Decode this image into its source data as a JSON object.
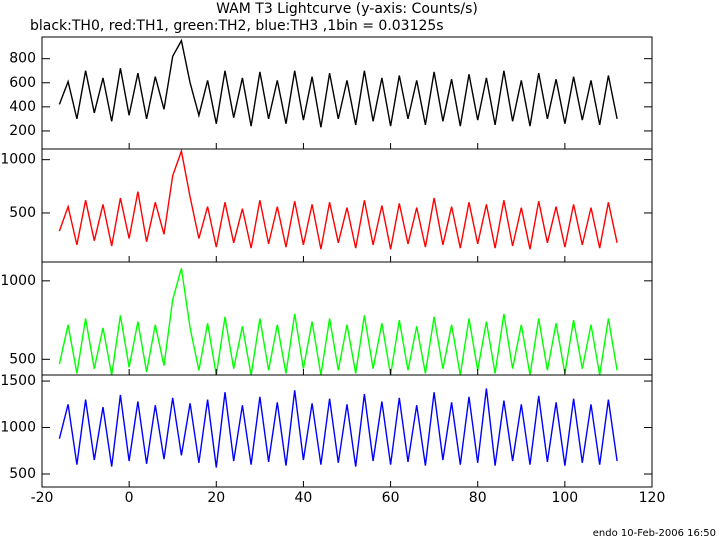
{
  "title": "WAM T3 Lightcurve (y-axis: Counts/s)",
  "subtitle": "black:TH0, red:TH1, green:TH2, blue:TH3 ,1bin = 0.03125s",
  "footer": "endo 10-Feb-2006 16:50",
  "chart_data": [
    {
      "type": "line",
      "x": [
        -16,
        -14,
        -12,
        -10,
        -8,
        -6,
        -4,
        -2,
        0,
        2,
        4,
        6,
        8,
        10,
        12,
        14,
        16,
        18,
        20,
        22,
        24,
        26,
        28,
        30,
        32,
        34,
        36,
        38,
        40,
        42,
        44,
        46,
        48,
        50,
        52,
        54,
        56,
        58,
        60,
        62,
        64,
        66,
        68,
        70,
        72,
        74,
        76,
        78,
        80,
        82,
        84,
        86,
        88,
        90,
        92,
        94,
        96,
        98,
        100,
        102,
        104,
        106,
        108,
        110,
        112
      ],
      "series": [
        {
          "name": "TH0",
          "color": "#000000",
          "values": [
            420,
            610,
            300,
            700,
            350,
            640,
            280,
            720,
            330,
            680,
            300,
            650,
            380,
            820,
            950,
            600,
            330,
            620,
            260,
            700,
            310,
            640,
            240,
            690,
            300,
            620,
            260,
            700,
            290,
            650,
            230,
            680,
            300,
            620,
            250,
            700,
            280,
            640,
            240,
            660,
            300,
            620,
            250,
            690,
            280,
            630,
            240,
            670,
            290,
            640,
            250,
            700,
            280,
            620,
            240,
            680,
            300,
            630,
            260,
            650,
            290,
            620,
            250,
            660,
            300
          ]
        }
      ],
      "xlim": [
        -20,
        120
      ],
      "xticks": [
        -20,
        0,
        20,
        40,
        60,
        80,
        100,
        120
      ],
      "ylim": [
        50,
        980
      ],
      "yticks": [
        200,
        400,
        600,
        800
      ]
    },
    {
      "type": "line",
      "x": [
        -16,
        -14,
        -12,
        -10,
        -8,
        -6,
        -4,
        -2,
        0,
        2,
        4,
        6,
        8,
        10,
        12,
        14,
        16,
        18,
        20,
        22,
        24,
        26,
        28,
        30,
        32,
        34,
        36,
        38,
        40,
        42,
        44,
        46,
        48,
        50,
        52,
        54,
        56,
        58,
        60,
        62,
        64,
        66,
        68,
        70,
        72,
        74,
        76,
        78,
        80,
        82,
        84,
        86,
        88,
        90,
        92,
        94,
        96,
        98,
        100,
        102,
        104,
        106,
        108,
        110,
        112
      ],
      "series": [
        {
          "name": "TH1",
          "color": "#ff0000",
          "values": [
            330,
            560,
            200,
            620,
            240,
            580,
            190,
            640,
            260,
            700,
            230,
            600,
            300,
            850,
            1080,
            650,
            260,
            560,
            180,
            600,
            220,
            540,
            170,
            620,
            210,
            560,
            180,
            610,
            200,
            580,
            160,
            600,
            220,
            550,
            170,
            620,
            200,
            570,
            160,
            590,
            210,
            550,
            180,
            640,
            200,
            560,
            170,
            600,
            210,
            580,
            170,
            620,
            190,
            550,
            160,
            610,
            220,
            560,
            180,
            580,
            200,
            550,
            170,
            600,
            220
          ]
        }
      ],
      "xlim": [
        -20,
        120
      ],
      "xticks": [
        -20,
        0,
        20,
        40,
        60,
        80,
        100,
        120
      ],
      "ylim": [
        40,
        1100
      ],
      "yticks": [
        500,
        1000
      ]
    },
    {
      "type": "line",
      "x": [
        -16,
        -14,
        -12,
        -10,
        -8,
        -6,
        -4,
        -2,
        0,
        2,
        4,
        6,
        8,
        10,
        12,
        14,
        16,
        18,
        20,
        22,
        24,
        26,
        28,
        30,
        32,
        34,
        36,
        38,
        40,
        42,
        44,
        46,
        48,
        50,
        52,
        54,
        56,
        58,
        60,
        62,
        64,
        66,
        68,
        70,
        72,
        74,
        76,
        78,
        80,
        82,
        84,
        86,
        88,
        90,
        92,
        94,
        96,
        98,
        100,
        102,
        104,
        106,
        108,
        110,
        112
      ],
      "series": [
        {
          "name": "TH2",
          "color": "#00ff00",
          "values": [
            470,
            720,
            410,
            760,
            440,
            700,
            400,
            780,
            450,
            740,
            420,
            720,
            460,
            880,
            1080,
            700,
            430,
            730,
            400,
            770,
            440,
            710,
            400,
            760,
            430,
            720,
            410,
            790,
            440,
            740,
            400,
            760,
            430,
            720,
            410,
            780,
            440,
            730,
            400,
            750,
            430,
            710,
            410,
            770,
            440,
            720,
            400,
            760,
            430,
            740,
            410,
            790,
            440,
            720,
            400,
            760,
            430,
            730,
            410,
            750,
            440,
            720,
            400,
            760,
            430
          ]
        }
      ],
      "xlim": [
        -20,
        120
      ],
      "xticks": [
        -20,
        0,
        20,
        40,
        60,
        80,
        100,
        120
      ],
      "ylim": [
        400,
        1120
      ],
      "yticks": [
        500,
        1000
      ]
    },
    {
      "type": "line",
      "x": [
        -16,
        -14,
        -12,
        -10,
        -8,
        -6,
        -4,
        -2,
        0,
        2,
        4,
        6,
        8,
        10,
        12,
        14,
        16,
        18,
        20,
        22,
        24,
        26,
        28,
        30,
        32,
        34,
        36,
        38,
        40,
        42,
        44,
        46,
        48,
        50,
        52,
        54,
        56,
        58,
        60,
        62,
        64,
        66,
        68,
        70,
        72,
        74,
        76,
        78,
        80,
        82,
        84,
        86,
        88,
        90,
        92,
        94,
        96,
        98,
        100,
        102,
        104,
        106,
        108,
        110,
        112
      ],
      "series": [
        {
          "name": "TH3",
          "color": "#0000ff",
          "values": [
            880,
            1250,
            600,
            1300,
            650,
            1220,
            580,
            1350,
            640,
            1280,
            610,
            1240,
            660,
            1320,
            700,
            1260,
            620,
            1300,
            570,
            1380,
            640,
            1240,
            600,
            1330,
            630,
            1270,
            590,
            1400,
            650,
            1260,
            600,
            1310,
            620,
            1250,
            580,
            1360,
            640,
            1280,
            600,
            1320,
            630,
            1240,
            590,
            1380,
            650,
            1270,
            600,
            1330,
            620,
            1420,
            590,
            1290,
            640,
            1250,
            600,
            1340,
            630,
            1270,
            590,
            1310,
            620,
            1250,
            600,
            1300,
            640
          ]
        }
      ],
      "xlim": [
        -20,
        120
      ],
      "xticks": [
        -20,
        0,
        20,
        40,
        60,
        80,
        100,
        120
      ],
      "ylim": [
        360,
        1565
      ],
      "yticks": [
        500,
        1000,
        1500
      ]
    }
  ]
}
